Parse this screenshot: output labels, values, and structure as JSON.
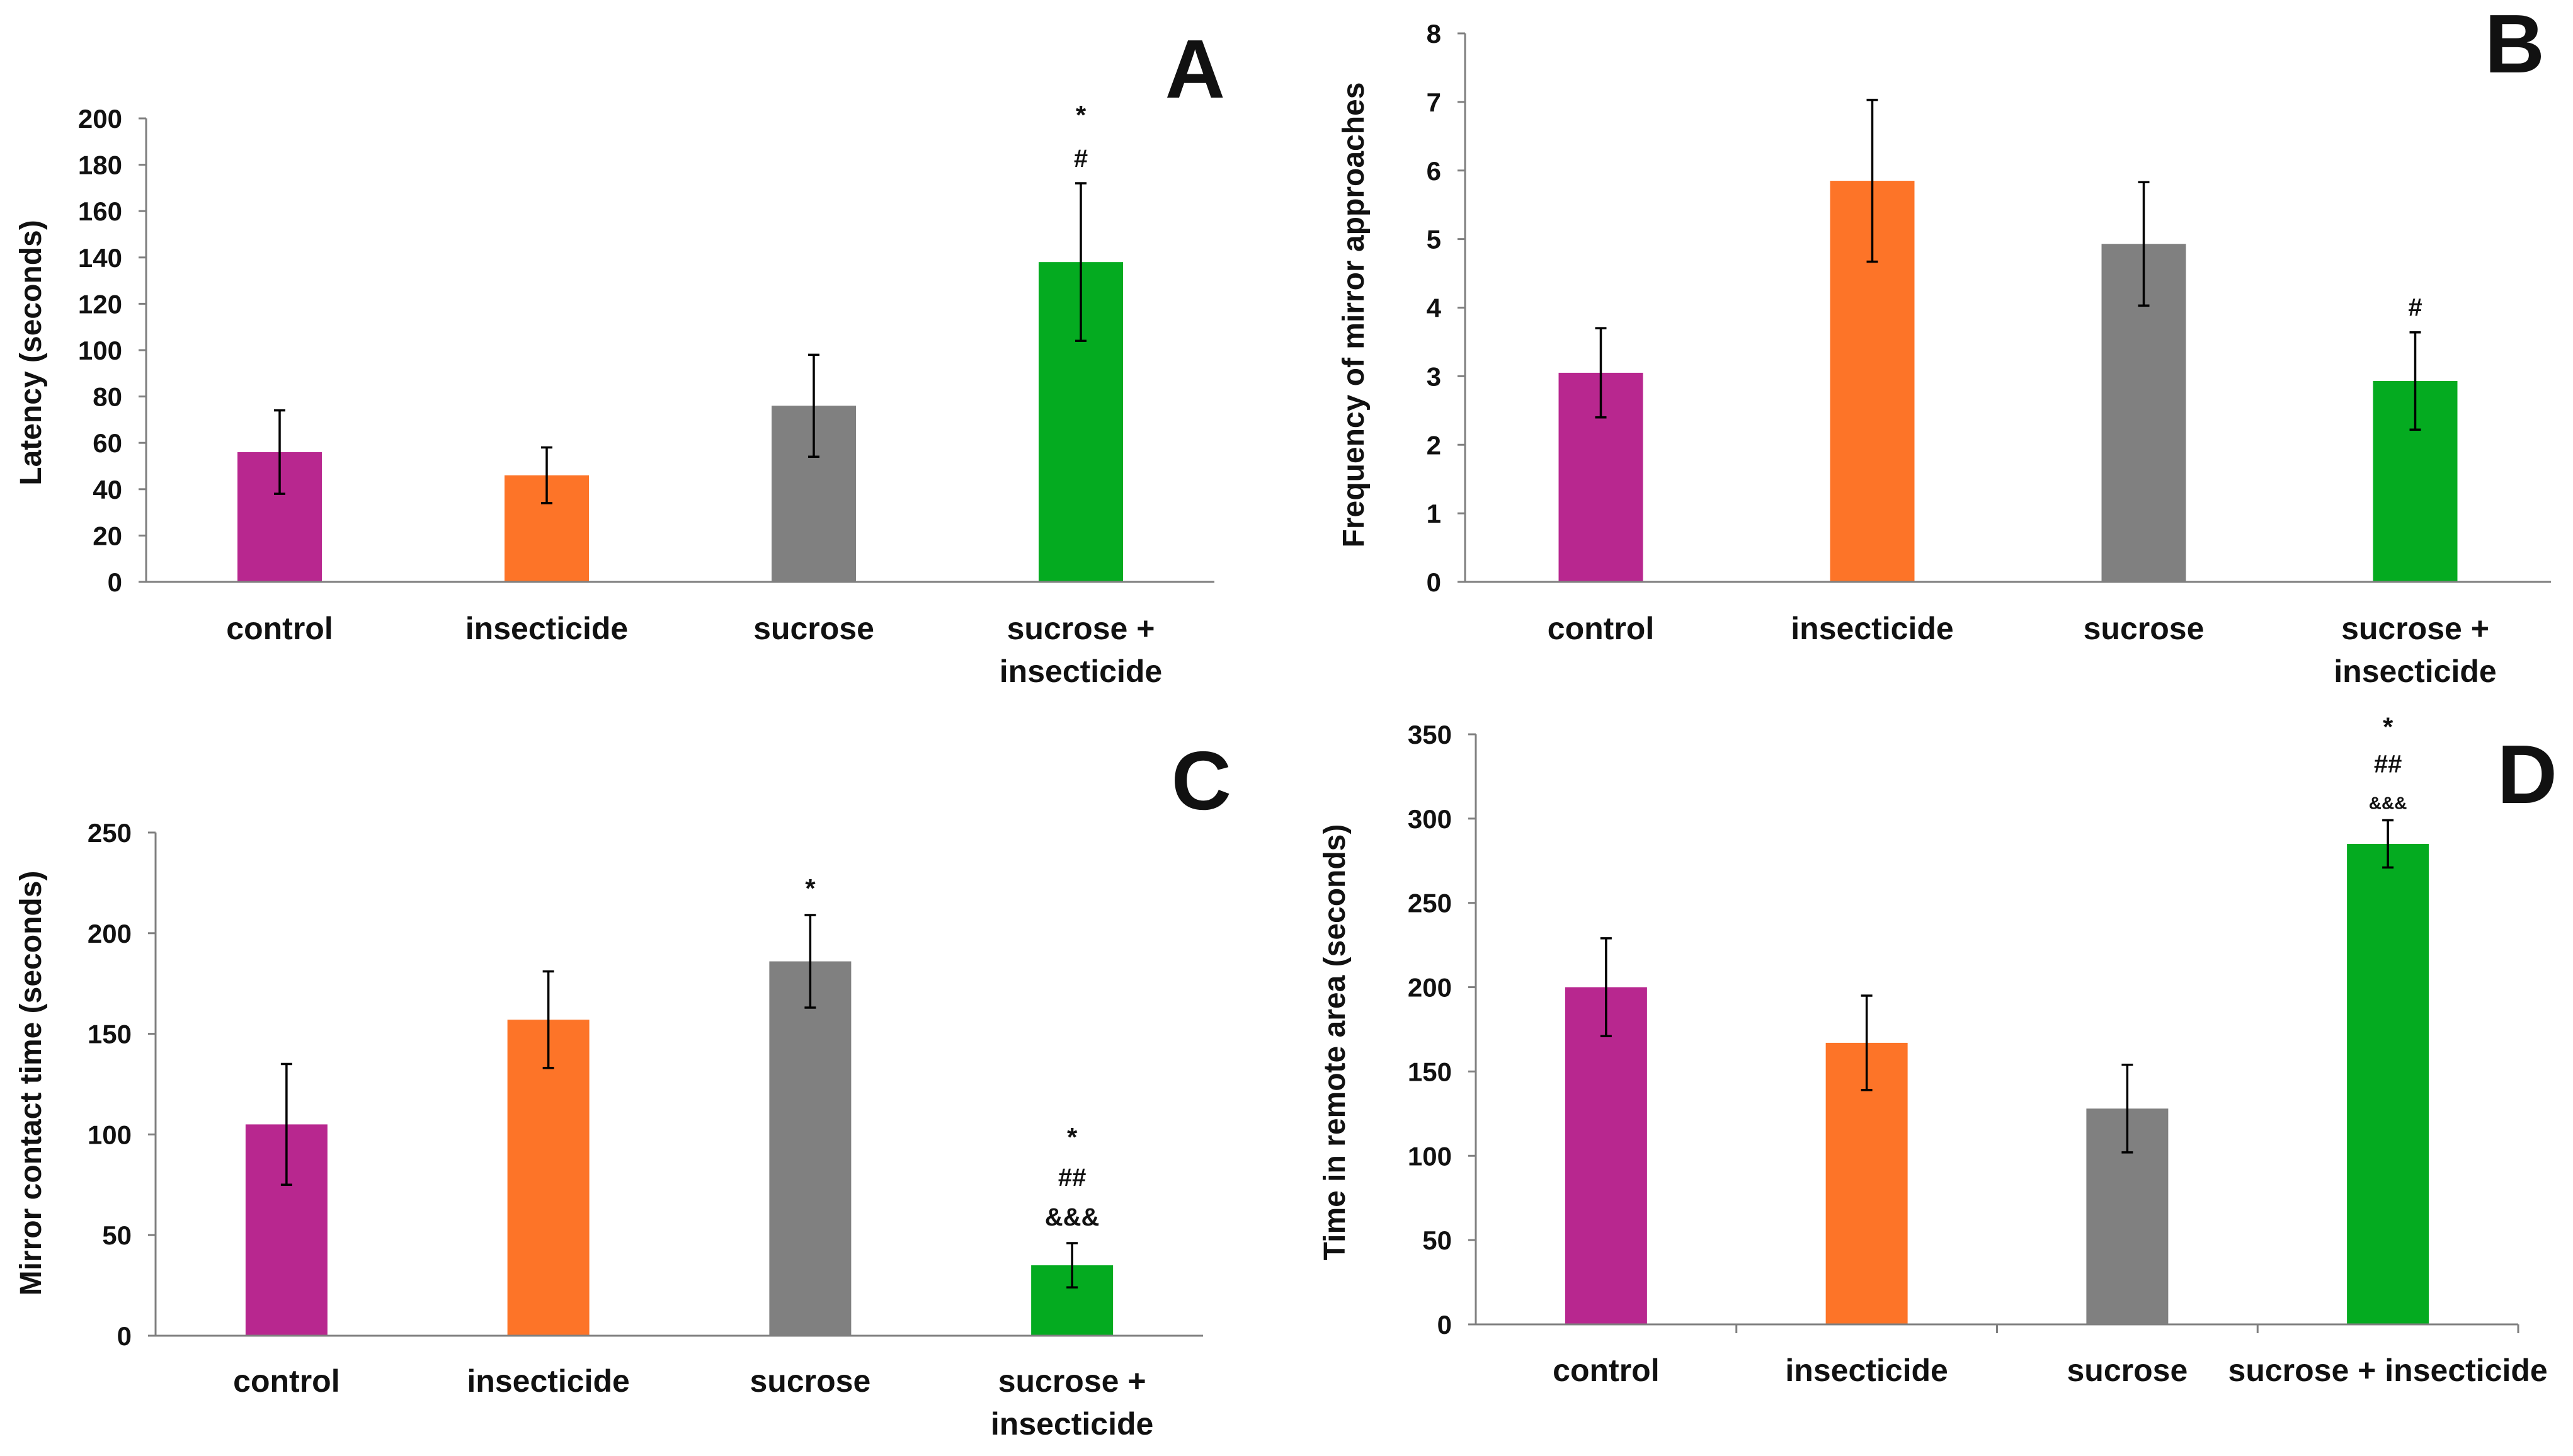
{
  "figure": {
    "colors": {
      "control": "#b8278f",
      "insecticide": "#fd7428",
      "sucrose": "#808080",
      "sucrose_insecticide": "#04ab20"
    }
  },
  "chart_data": [
    {
      "panel": "A",
      "type": "bar",
      "title": "",
      "xlabel": "",
      "ylabel": "Latency (seconds)",
      "ylim": [
        0,
        200
      ],
      "yticks": [
        0,
        20,
        40,
        60,
        80,
        100,
        120,
        140,
        160,
        180,
        200
      ],
      "category_labels": [
        [
          "control"
        ],
        [
          "insecticide"
        ],
        [
          "sucrose"
        ],
        [
          "sucrose +",
          "insecticide"
        ]
      ],
      "category_ticks": false,
      "values": [
        56,
        46,
        76,
        138
      ],
      "errors": [
        18,
        12,
        22,
        34
      ],
      "colors": [
        "#b8278f",
        "#fd7428",
        "#808080",
        "#04ab20"
      ],
      "annotations": [
        [],
        [],
        [],
        [
          "*",
          "#"
        ]
      ]
    },
    {
      "panel": "B",
      "type": "bar",
      "title": "",
      "xlabel": "",
      "ylabel": "Frequency of mirror approaches",
      "ylim": [
        0,
        8
      ],
      "yticks": [
        0,
        1,
        2,
        3,
        4,
        5,
        6,
        7,
        8
      ],
      "category_labels": [
        [
          "control"
        ],
        [
          "insecticide"
        ],
        [
          "sucrose"
        ],
        [
          "sucrose +",
          "insecticide"
        ]
      ],
      "category_ticks": false,
      "values": [
        3.05,
        5.85,
        4.93,
        2.93
      ],
      "errors": [
        0.65,
        1.18,
        0.9,
        0.71
      ],
      "colors": [
        "#b8278f",
        "#fd7428",
        "#808080",
        "#04ab20"
      ],
      "annotations": [
        [],
        [],
        [],
        [
          "#"
        ]
      ]
    },
    {
      "panel": "C",
      "type": "bar",
      "title": "",
      "xlabel": "",
      "ylabel": "Mirror contact time (seconds)",
      "ylim": [
        0,
        250
      ],
      "yticks": [
        0,
        50,
        100,
        150,
        200,
        250
      ],
      "category_labels": [
        [
          "control"
        ],
        [
          "insecticide"
        ],
        [
          "sucrose"
        ],
        [
          "sucrose +",
          "insecticide"
        ]
      ],
      "category_ticks": false,
      "values": [
        105,
        157,
        186,
        35
      ],
      "errors": [
        30,
        24,
        23,
        11
      ],
      "colors": [
        "#b8278f",
        "#fd7428",
        "#808080",
        "#04ab20"
      ],
      "annotations": [
        [],
        [],
        [
          "*"
        ],
        [
          "*",
          "##",
          "&&&"
        ]
      ]
    },
    {
      "panel": "D",
      "type": "bar",
      "title": "",
      "xlabel": "",
      "ylabel": "Time in remote area (seconds)",
      "ylim": [
        0,
        350
      ],
      "yticks": [
        0,
        50,
        100,
        150,
        200,
        250,
        300,
        350
      ],
      "category_labels": [
        [
          "control"
        ],
        [
          "insecticide"
        ],
        [
          "sucrose"
        ],
        [
          "sucrose + insecticide"
        ]
      ],
      "category_ticks": true,
      "values": [
        200,
        167,
        128,
        285
      ],
      "errors": [
        29,
        28,
        26,
        14
      ],
      "colors": [
        "#b8278f",
        "#fd7428",
        "#808080",
        "#04ab20"
      ],
      "annotations": [
        [],
        [],
        [],
        [
          "*",
          "##",
          "&&&"
        ]
      ]
    }
  ]
}
